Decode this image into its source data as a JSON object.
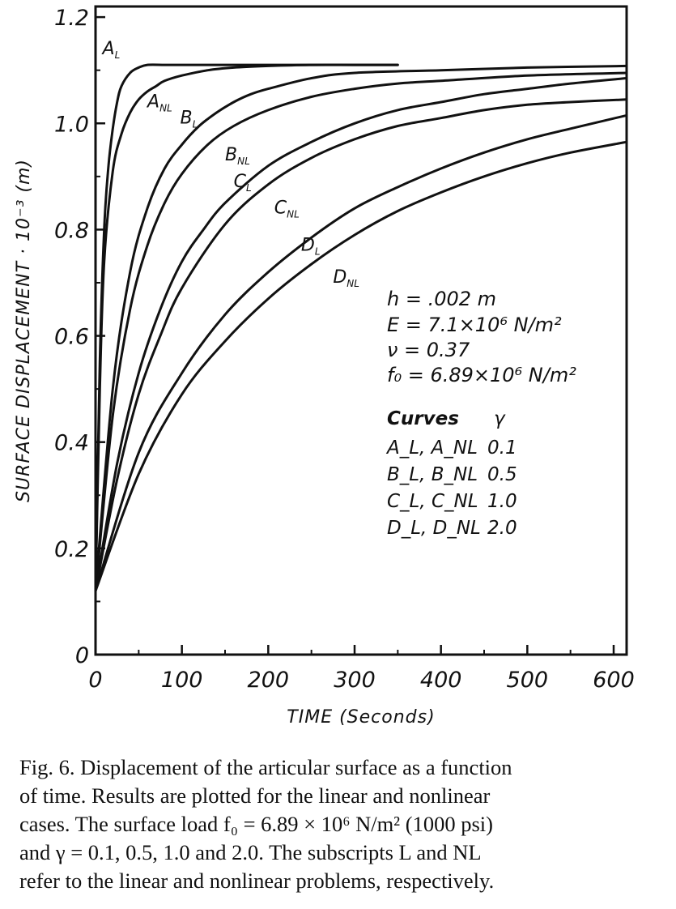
{
  "chart_data": {
    "type": "line",
    "xlabel": "TIME (Seconds)",
    "ylabel": "SURFACE DISPLACEMENT · 10⁻³ (m)",
    "xlim": [
      0,
      615
    ],
    "ylim": [
      0,
      1.22
    ],
    "x_ticks": [
      0,
      100,
      200,
      300,
      400,
      500,
      600
    ],
    "x_tick_labels": [
      "0",
      "100",
      "200",
      "300",
      "400",
      "500",
      "600"
    ],
    "y_ticks": [
      0,
      0.2,
      0.4,
      0.6,
      0.8,
      1.0,
      1.2
    ],
    "y_tick_labels": [
      "0",
      "0.2",
      "0.4",
      "0.6",
      "0.8",
      "1.0",
      "1.2"
    ],
    "series": [
      {
        "name": "A_L",
        "label_main": "A",
        "label_sub": "L",
        "label_at": [
          8,
          1.13
        ],
        "x": [
          0,
          5,
          10,
          15,
          20,
          25,
          30,
          40,
          50,
          60,
          80,
          100,
          150,
          200,
          300,
          350
        ],
        "y": [
          0.12,
          0.55,
          0.8,
          0.92,
          0.99,
          1.04,
          1.07,
          1.095,
          1.105,
          1.11,
          1.11,
          1.11,
          1.11,
          1.11,
          1.11,
          1.11
        ]
      },
      {
        "name": "A_NL",
        "label_main": "A",
        "label_sub": "NL",
        "label_at": [
          60,
          1.03
        ],
        "x": [
          0,
          5,
          10,
          20,
          30,
          40,
          50,
          60,
          70,
          80,
          100,
          130,
          160,
          200,
          250,
          300,
          350
        ],
        "y": [
          0.12,
          0.5,
          0.74,
          0.91,
          0.98,
          1.02,
          1.045,
          1.06,
          1.07,
          1.08,
          1.09,
          1.1,
          1.105,
          1.108,
          1.11,
          1.11,
          1.11
        ]
      },
      {
        "name": "B_L",
        "label_main": "B",
        "label_sub": "L",
        "label_at": [
          98,
          1.0
        ],
        "x": [
          0,
          20,
          40,
          60,
          80,
          100,
          120,
          140,
          160,
          180,
          200,
          250,
          300,
          400,
          500,
          615
        ],
        "y": [
          0.12,
          0.5,
          0.72,
          0.84,
          0.915,
          0.96,
          0.995,
          1.02,
          1.04,
          1.055,
          1.065,
          1.085,
          1.095,
          1.1,
          1.105,
          1.108
        ]
      },
      {
        "name": "B_NL",
        "label_main": "B",
        "label_sub": "NL",
        "label_at": [
          150,
          0.93
        ],
        "x": [
          0,
          20,
          40,
          60,
          80,
          100,
          130,
          160,
          200,
          250,
          300,
          350,
          400,
          500,
          615
        ],
        "y": [
          0.12,
          0.45,
          0.65,
          0.77,
          0.85,
          0.905,
          0.96,
          0.995,
          1.025,
          1.05,
          1.065,
          1.075,
          1.08,
          1.09,
          1.095
        ]
      },
      {
        "name": "C_L",
        "label_main": "C",
        "label_sub": "L",
        "label_at": [
          160,
          0.88
        ],
        "x": [
          0,
          25,
          50,
          75,
          100,
          125,
          150,
          200,
          250,
          300,
          350,
          400,
          450,
          500,
          550,
          615
        ],
        "y": [
          0.12,
          0.36,
          0.53,
          0.65,
          0.74,
          0.8,
          0.85,
          0.92,
          0.965,
          1.0,
          1.025,
          1.04,
          1.055,
          1.065,
          1.075,
          1.085
        ]
      },
      {
        "name": "C_NL",
        "label_main": "C",
        "label_sub": "NL",
        "label_at": [
          207,
          0.83
        ],
        "x": [
          0,
          25,
          50,
          75,
          100,
          150,
          200,
          250,
          300,
          350,
          400,
          450,
          500,
          550,
          615
        ],
        "y": [
          0.12,
          0.33,
          0.49,
          0.6,
          0.69,
          0.81,
          0.885,
          0.935,
          0.97,
          0.995,
          1.01,
          1.025,
          1.035,
          1.04,
          1.045
        ]
      },
      {
        "name": "D_L",
        "label_main": "D",
        "label_sub": "L",
        "label_at": [
          238,
          0.76
        ],
        "x": [
          0,
          50,
          100,
          150,
          200,
          250,
          300,
          350,
          400,
          450,
          500,
          550,
          615
        ],
        "y": [
          0.12,
          0.38,
          0.53,
          0.64,
          0.72,
          0.785,
          0.84,
          0.88,
          0.915,
          0.945,
          0.97,
          0.99,
          1.015
        ]
      },
      {
        "name": "D_NL",
        "label_main": "D",
        "label_sub": "NL",
        "label_at": [
          275,
          0.7
        ],
        "x": [
          0,
          50,
          100,
          150,
          200,
          250,
          300,
          350,
          400,
          450,
          500,
          550,
          615
        ],
        "y": [
          0.12,
          0.34,
          0.49,
          0.59,
          0.67,
          0.735,
          0.79,
          0.835,
          0.87,
          0.9,
          0.925,
          0.945,
          0.965
        ]
      }
    ],
    "parameters": [
      "h = .002 m",
      "E = 7.1×10⁶  N/m²",
      "ν = 0.37",
      "f₀ = 6.89×10⁶  N/m²"
    ],
    "legend_table": {
      "header": [
        "Curves",
        "γ"
      ],
      "rows": [
        [
          "A_L, A_NL",
          "0.1"
        ],
        [
          "B_L, B_NL",
          "0.5"
        ],
        [
          "C_L, C_NL",
          "1.0"
        ],
        [
          "D_L, D_NL",
          "2.0"
        ]
      ]
    }
  },
  "caption_lines": [
    "Fig. 6. Displacement of the articular surface as a function",
    "of time. Results are plotted for the linear and nonlinear",
    "cases. The surface load f₀ = 6.89 × 10⁶ N/m² (1000 psi)",
    "and γ = 0.1, 0.5, 1.0 and 2.0. The subscripts L and NL",
    "refer to the linear and nonlinear problems, respectively."
  ]
}
